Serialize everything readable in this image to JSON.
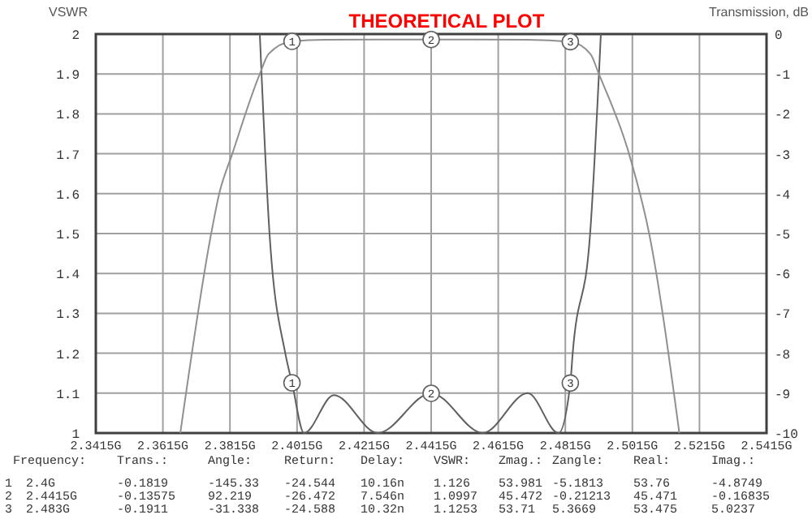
{
  "chart_data": {
    "type": "line",
    "title": "THEORETICAL PLOT",
    "ylabel": "VSWR",
    "y2label": "Transmission, dB",
    "xlim": [
      2.3415,
      2.5415
    ],
    "xticks": [
      {
        "value": 2.3415,
        "label": "2.3415G"
      },
      {
        "value": 2.3615,
        "label": "2.3615G"
      },
      {
        "value": 2.3815,
        "label": "2.3815G"
      },
      {
        "value": 2.4015,
        "label": "2.4015G"
      },
      {
        "value": 2.4215,
        "label": "2.4215G"
      },
      {
        "value": 2.4415,
        "label": "2.4415G"
      },
      {
        "value": 2.4615,
        "label": "2.4615G"
      },
      {
        "value": 2.4815,
        "label": "2.4815G"
      },
      {
        "value": 2.5015,
        "label": "2.5015G"
      },
      {
        "value": 2.5215,
        "label": "2.5215G"
      },
      {
        "value": 2.5415,
        "label": "2.5415G"
      }
    ],
    "ylim": [
      1,
      2
    ],
    "yticks": [
      1,
      1.1,
      1.2,
      1.3,
      1.4,
      1.5,
      1.6,
      1.7,
      1.8,
      1.9,
      2
    ],
    "y2lim": [
      -10,
      0
    ],
    "y2ticks": [
      -10,
      -9,
      -8,
      -7,
      -6,
      -5,
      -4,
      -3,
      -2,
      -1,
      0
    ],
    "grid": true,
    "marker": "none",
    "line_style": "solid",
    "series": [
      {
        "color": "#606060",
        "x": [
          2.3904,
          2.3933,
          2.398,
          2.4,
          2.4036,
          2.4125,
          2.4256,
          2.4415,
          2.4569,
          2.4703,
          2.4795,
          2.483,
          2.4837,
          2.4889,
          2.4921
        ],
        "values": [
          2,
          1.5,
          1.2,
          1.126,
          1,
          1.095,
          1,
          1.0997,
          1,
          1.1,
          1,
          1.1253,
          1.2,
          1.5,
          2
        ]
      },
      {
        "color": "#909090",
        "axis": "y2",
        "x": [
          2.3667,
          2.3759,
          2.3783,
          2.3822,
          2.3904,
          2.393,
          2.4,
          2.41,
          2.4415,
          2.47,
          2.483,
          2.489,
          2.4915,
          2.5005,
          2.5065,
          2.5155
        ],
        "values": [
          -10,
          -5,
          -4,
          -3,
          -1,
          -0.5,
          -0.1819,
          -0.14,
          -0.13575,
          -0.14,
          -0.1911,
          -0.5,
          -1,
          -3,
          -5,
          -10
        ]
      }
    ],
    "annotations": [
      {
        "text": "1",
        "x": 2.4,
        "y": 1.126
      },
      {
        "text": "2",
        "x": 2.4415,
        "y": 1.0997
      },
      {
        "text": "3",
        "x": 2.483,
        "y": 1.1253
      },
      {
        "text": "1",
        "x": 2.4,
        "y": 1.98181
      },
      {
        "text": "2",
        "x": 2.4415,
        "y": 1.986425
      },
      {
        "text": "3",
        "x": 2.483,
        "y": 1.98089
      },
      "Frequency:",
      "Trans.:",
      "Angle:",
      "Return:",
      "Delay:",
      "VSWR:",
      "Zmag.:",
      "Zangle:",
      "Real:",
      "Imag.:",
      "1",
      "2.4G",
      "-0.1819",
      "-145.33",
      "-24.544",
      "10.16n",
      "1.126",
      "53.981",
      "-5.1813",
      "53.76",
      "-4.8749",
      "2",
      "2.4415G",
      "-0.13575",
      "92.219",
      "-26.472",
      "7.546n",
      "1.0997",
      "45.472",
      "-0.21213",
      "45.471",
      "-0.16835",
      "3",
      "2.483G",
      "-0.1911",
      "-31.338",
      "-24.588",
      "10.32n",
      "1.1253",
      "53.71",
      "5.3669",
      "53.475",
      "5.0237"
    ]
  }
}
